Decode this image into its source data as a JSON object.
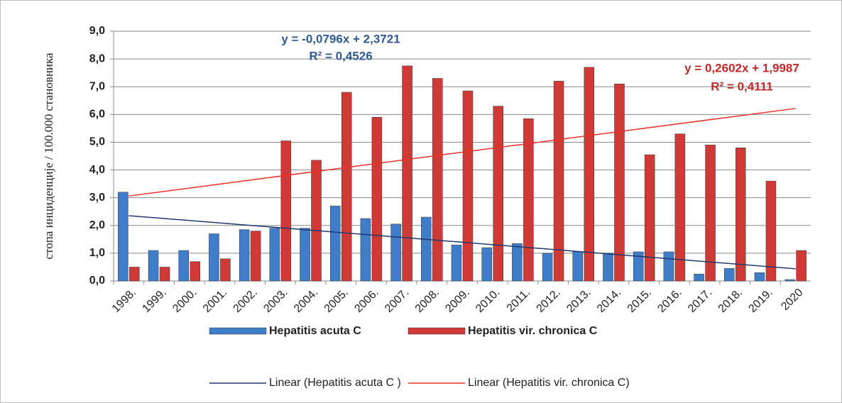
{
  "chart_data": {
    "type": "bar",
    "y_label": "стопа инциденције / 100.000 становника",
    "categories": [
      "1998.",
      "1999.",
      "2000.",
      "2001.",
      "2002.",
      "2003.",
      "2004.",
      "2005.",
      "2006.",
      "2007.",
      "2008.",
      "2009.",
      "2010.",
      "2011.",
      "2012.",
      "2013.",
      "2014.",
      "2015.",
      "2016.",
      "2017.",
      "2018.",
      "2019.",
      "2020"
    ],
    "series": [
      {
        "name": "Hepatitis acuta  C",
        "color": "#3f7dc9",
        "values": [
          3.2,
          1.1,
          1.1,
          1.7,
          1.85,
          1.9,
          1.9,
          2.7,
          2.25,
          2.05,
          2.3,
          1.3,
          1.2,
          1.35,
          1.0,
          1.05,
          1.0,
          1.05,
          1.05,
          0.25,
          0.45,
          0.3,
          0.05
        ]
      },
      {
        "name": "Hepatitis vir. chronica C",
        "color": "#d03a36",
        "values": [
          0.5,
          0.5,
          0.7,
          0.8,
          1.8,
          5.05,
          4.35,
          6.8,
          5.9,
          7.75,
          7.3,
          6.85,
          6.3,
          5.85,
          7.2,
          7.7,
          7.1,
          4.55,
          5.3,
          4.9,
          4.8,
          3.6,
          1.1
        ]
      }
    ],
    "trendlines": [
      {
        "name": "Linear (Hepatitis acuta  C )",
        "color": "#1f3a6e",
        "equation": "y = -0,0796x + 2,3721",
        "r2": "R² = 0,4526",
        "label_color": "#2e5b8f"
      },
      {
        "name": "Linear (Hepatitis vir. chronica C)",
        "color": "#e8302a",
        "equation": "y = 0,2602x + 1,9987",
        "r2": "R² = 0,4111",
        "label_color": "#c0282a"
      }
    ],
    "ylim": [
      0,
      9
    ],
    "yticks": [
      {
        "value": 0,
        "label": "0,0"
      },
      {
        "value": 1,
        "label": "1,0"
      },
      {
        "value": 2,
        "label": "2,0"
      },
      {
        "value": 3,
        "label": "3,0"
      },
      {
        "value": 4,
        "label": "4,0"
      },
      {
        "value": 5,
        "label": "5,0"
      },
      {
        "value": 6,
        "label": "6,0"
      },
      {
        "value": 7,
        "label": "7,0"
      },
      {
        "value": 8,
        "label": "8,0"
      },
      {
        "value": 9,
        "label": "9,0"
      }
    ],
    "grid": true,
    "legend": "bottom"
  }
}
